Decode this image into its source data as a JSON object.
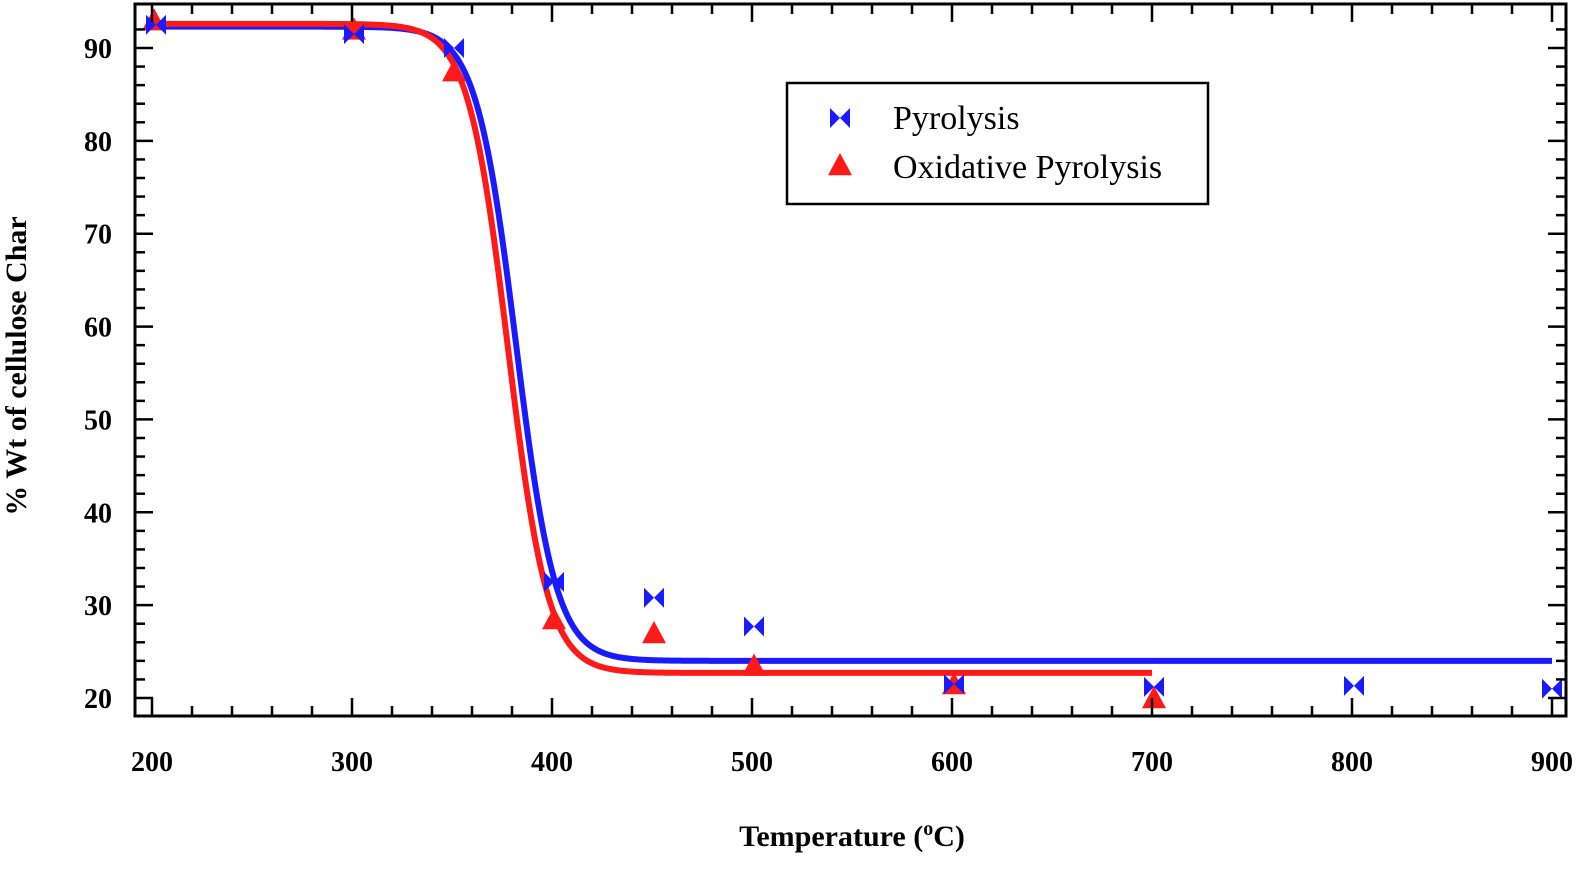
{
  "chart_data": {
    "type": "scatter",
    "title": "",
    "xlabel": "Temperature (",
    "xlabel_sup": "o",
    "xlabel_unit": "C)",
    "ylabel": "% Wt of cellulose Char",
    "xlim": [
      200,
      900
    ],
    "ylim": [
      18,
      94
    ],
    "xticks": [
      200,
      300,
      400,
      500,
      600,
      700,
      800,
      900
    ],
    "yticks": [
      20,
      30,
      40,
      50,
      60,
      70,
      80,
      90
    ],
    "grid": false,
    "legend_position": "top-center",
    "series": [
      {
        "name": "Pyrolysis",
        "marker": "bowtie",
        "color": "#1a1aff",
        "points": [
          {
            "x": 202,
            "y": 92.5
          },
          {
            "x": 301,
            "y": 91.5
          },
          {
            "x": 351,
            "y": 90.0
          },
          {
            "x": 401,
            "y": 32.5
          },
          {
            "x": 451,
            "y": 30.8
          },
          {
            "x": 501,
            "y": 27.7
          },
          {
            "x": 601,
            "y": 21.5
          },
          {
            "x": 701,
            "y": 21.2
          },
          {
            "x": 801,
            "y": 21.3
          },
          {
            "x": 900,
            "y": 21.0
          }
        ],
        "fit": {
          "x_start": 200,
          "x_end": 900,
          "top": 92.3,
          "bottom": 24.0,
          "midpoint": 382,
          "width": 10
        }
      },
      {
        "name": "Oxidative Pyrolysis",
        "marker": "triangle",
        "color": "#ff1a1a",
        "points": [
          {
            "x": 201,
            "y": 93.0
          },
          {
            "x": 301,
            "y": 92.0
          },
          {
            "x": 351,
            "y": 87.5
          },
          {
            "x": 401,
            "y": 28.5
          },
          {
            "x": 451,
            "y": 27.0
          },
          {
            "x": 501,
            "y": 23.5
          },
          {
            "x": 601,
            "y": 21.5
          },
          {
            "x": 701,
            "y": 20.0
          }
        ],
        "fit": {
          "x_start": 200,
          "x_end": 700,
          "top": 92.6,
          "bottom": 22.7,
          "midpoint": 378,
          "width": 10
        }
      }
    ]
  }
}
